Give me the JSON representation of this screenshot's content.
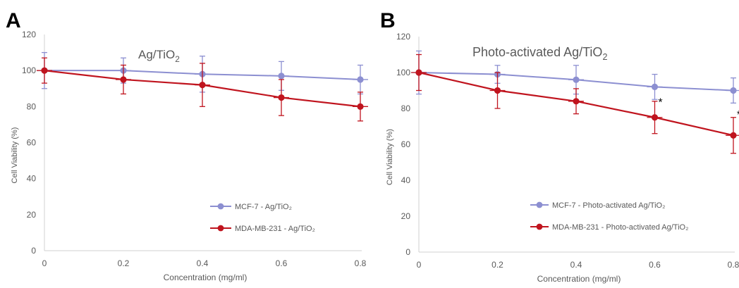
{
  "colors": {
    "mcf7": "#8c8fd1",
    "mda": "#c0141e",
    "axis": "#d0d0d0",
    "tick_text": "#595959",
    "panel_letter": "#000000"
  },
  "chart_data": [
    {
      "type": "line",
      "panel_letter": "A",
      "title_main": "Ag/TiO",
      "title_sub": "2",
      "xlabel": "Concentration (mg/ml)",
      "ylabel": "Cell Viability (%)",
      "xlim": [
        0,
        0.8
      ],
      "ylim": [
        0,
        120
      ],
      "xticks": [
        "0",
        "0.2",
        "0.4",
        "0.6",
        "0.8"
      ],
      "yticks": [
        "0",
        "20",
        "40",
        "60",
        "80",
        "100",
        "120"
      ],
      "grid": false,
      "legend_position": "bottom-right",
      "series": [
        {
          "name": "MCF-7 - Ag/TiO₂",
          "color": "#8c8fd1",
          "x": [
            0,
            0.2,
            0.4,
            0.6,
            0.8
          ],
          "y": [
            100,
            100,
            98,
            97,
            95
          ],
          "yerr": [
            10,
            7,
            10,
            8,
            8
          ]
        },
        {
          "name": "MDA-MB-231 - Ag/TiO₂",
          "color": "#c0141e",
          "x": [
            0,
            0.2,
            0.4,
            0.6,
            0.8
          ],
          "y": [
            100,
            95,
            92,
            85,
            80
          ],
          "yerr": [
            7,
            8,
            12,
            10,
            8
          ]
        }
      ],
      "annotations": []
    },
    {
      "type": "line",
      "panel_letter": "B",
      "title_main": "Photo-activated Ag/TiO",
      "title_sub": "2",
      "xlabel": "Concentration (mg/ml)",
      "ylabel": "Cell Viability (%)",
      "xlim": [
        0,
        0.8
      ],
      "ylim": [
        0,
        120
      ],
      "xticks": [
        "0",
        "0.2",
        "0.4",
        "0.6",
        "0.8"
      ],
      "yticks": [
        "0",
        "20",
        "40",
        "60",
        "80",
        "100",
        "120"
      ],
      "grid": false,
      "legend_position": "bottom-right",
      "series": [
        {
          "name": "MCF-7 - Photo-activated Ag/TiO₂",
          "color": "#8c8fd1",
          "x": [
            0,
            0.2,
            0.4,
            0.6,
            0.8
          ],
          "y": [
            100,
            99,
            96,
            92,
            90
          ],
          "yerr": [
            12,
            5,
            8,
            7,
            7
          ]
        },
        {
          "name": "MDA-MB-231 - Photo-activated Ag/TiO₂",
          "color": "#c0141e",
          "x": [
            0,
            0.2,
            0.4,
            0.6,
            0.8
          ],
          "y": [
            100,
            90,
            84,
            75,
            65
          ],
          "yerr": [
            10,
            10,
            7,
            9,
            10
          ]
        }
      ],
      "annotations": [
        {
          "text": "*",
          "x": 0.6,
          "y": 83
        },
        {
          "text": "*",
          "x": 0.8,
          "y": 76
        }
      ]
    }
  ]
}
